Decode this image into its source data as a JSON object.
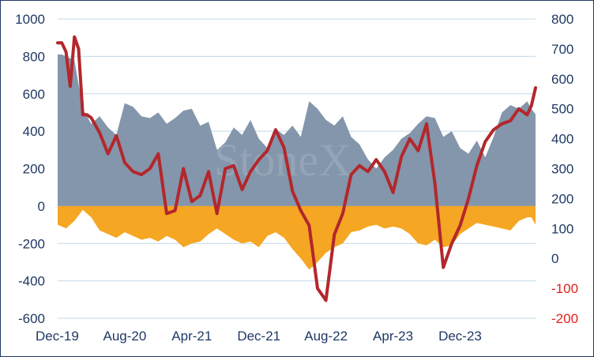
{
  "chart_data": {
    "type": "area",
    "title": "",
    "xlabel": "",
    "ylabel": "",
    "y2label": "",
    "grid": true,
    "legend": "none",
    "watermark": "StoneX",
    "x_tick_labels": [
      "Dec-19",
      "Aug-20",
      "Apr-21",
      "Dec-21",
      "Aug-22",
      "Apr-23",
      "Dec-23"
    ],
    "x_range": [
      "2019-12",
      "2024-09"
    ],
    "ylim_left": [
      -600,
      1000
    ],
    "ylim_right": [
      -200,
      800
    ],
    "left_ticks": [
      "1000",
      "800",
      "600",
      "400",
      "200",
      "0",
      "-200",
      "-400",
      "-600"
    ],
    "right_ticks": [
      "800",
      "700",
      "600",
      "500",
      "400",
      "300",
      "200",
      "100",
      "0",
      "-100",
      "-200"
    ],
    "colors": {
      "long_area": "#8496ab",
      "short_area": "#f5a623",
      "net_line": "#b3272c",
      "axis_text": "#1f3864",
      "negative_text": "#e0201b",
      "grid": "#bfd9ea"
    },
    "series": [
      {
        "axis": "left",
        "type": "area",
        "color": "#8496ab",
        "x": [
          0,
          0.5,
          1,
          2,
          3,
          4,
          5,
          6,
          7,
          8,
          9,
          10,
          11,
          12,
          13,
          14,
          15,
          16,
          17,
          18,
          19,
          20,
          21,
          22,
          23,
          24,
          25,
          26,
          27,
          28,
          29,
          30,
          31,
          32,
          33,
          34,
          35,
          36,
          37,
          38,
          39,
          40,
          41,
          42,
          43,
          44,
          45,
          46,
          47,
          48,
          49,
          50,
          51,
          52,
          53,
          54,
          55,
          56,
          56.5,
          57
        ],
        "values": [
          810,
          810,
          800,
          780,
          520,
          440,
          480,
          420,
          380,
          550,
          530,
          480,
          470,
          500,
          440,
          470,
          510,
          520,
          430,
          450,
          300,
          340,
          420,
          380,
          460,
          360,
          310,
          410,
          380,
          430,
          370,
          560,
          520,
          460,
          430,
          480,
          370,
          330,
          250,
          200,
          260,
          300,
          360,
          390,
          440,
          480,
          470,
          370,
          400,
          310,
          280,
          350,
          260,
          370,
          500,
          540,
          520,
          560,
          520,
          490
        ]
      },
      {
        "axis": "left",
        "type": "area",
        "color": "#f5a623",
        "x": [
          0,
          0.5,
          1,
          2,
          3,
          4,
          5,
          6,
          7,
          8,
          9,
          10,
          11,
          12,
          13,
          14,
          15,
          16,
          17,
          18,
          19,
          20,
          21,
          22,
          23,
          24,
          25,
          26,
          27,
          28,
          29,
          30,
          31,
          32,
          33,
          34,
          35,
          36,
          37,
          38,
          39,
          40,
          41,
          42,
          43,
          44,
          45,
          46,
          47,
          48,
          49,
          50,
          51,
          52,
          53,
          54,
          55,
          56,
          56.5,
          57
        ],
        "values": [
          -100,
          -110,
          -120,
          -80,
          -20,
          -60,
          -130,
          -150,
          -170,
          -140,
          -160,
          -180,
          -170,
          -190,
          -160,
          -180,
          -220,
          -200,
          -190,
          -150,
          -120,
          -150,
          -180,
          -200,
          -190,
          -220,
          -160,
          -140,
          -170,
          -230,
          -280,
          -340,
          -300,
          -250,
          -220,
          -200,
          -140,
          -130,
          -110,
          -100,
          -120,
          -110,
          -120,
          -150,
          -200,
          -210,
          -180,
          -220,
          -210,
          -150,
          -120,
          -90,
          -100,
          -110,
          -120,
          -130,
          -80,
          -60,
          -60,
          -100
        ]
      },
      {
        "axis": "right",
        "type": "line",
        "color": "#b3272c",
        "x": [
          0,
          0.5,
          1,
          1.5,
          2,
          2.5,
          3,
          3.5,
          4,
          5,
          6,
          7,
          8,
          9,
          10,
          11,
          12,
          13,
          14,
          15,
          16,
          17,
          18,
          19,
          20,
          21,
          22,
          23,
          24,
          25,
          26,
          27,
          28,
          29,
          30,
          31,
          32,
          33,
          34,
          35,
          36,
          37,
          38,
          39,
          40,
          41,
          42,
          43,
          44,
          45,
          46,
          47,
          48,
          49,
          50,
          51,
          52,
          53,
          54,
          55,
          56,
          56.5,
          57
        ],
        "values": [
          720,
          720,
          690,
          575,
          740,
          700,
          480,
          480,
          470,
          420,
          350,
          410,
          320,
          290,
          280,
          300,
          350,
          150,
          160,
          300,
          190,
          210,
          290,
          150,
          300,
          310,
          230,
          290,
          330,
          360,
          430,
          370,
          225,
          160,
          110,
          -100,
          -140,
          80,
          150,
          280,
          310,
          290,
          330,
          290,
          220,
          340,
          400,
          360,
          450,
          250,
          -30,
          50,
          110,
          200,
          310,
          390,
          430,
          450,
          460,
          500,
          480,
          510,
          570
        ]
      }
    ]
  }
}
